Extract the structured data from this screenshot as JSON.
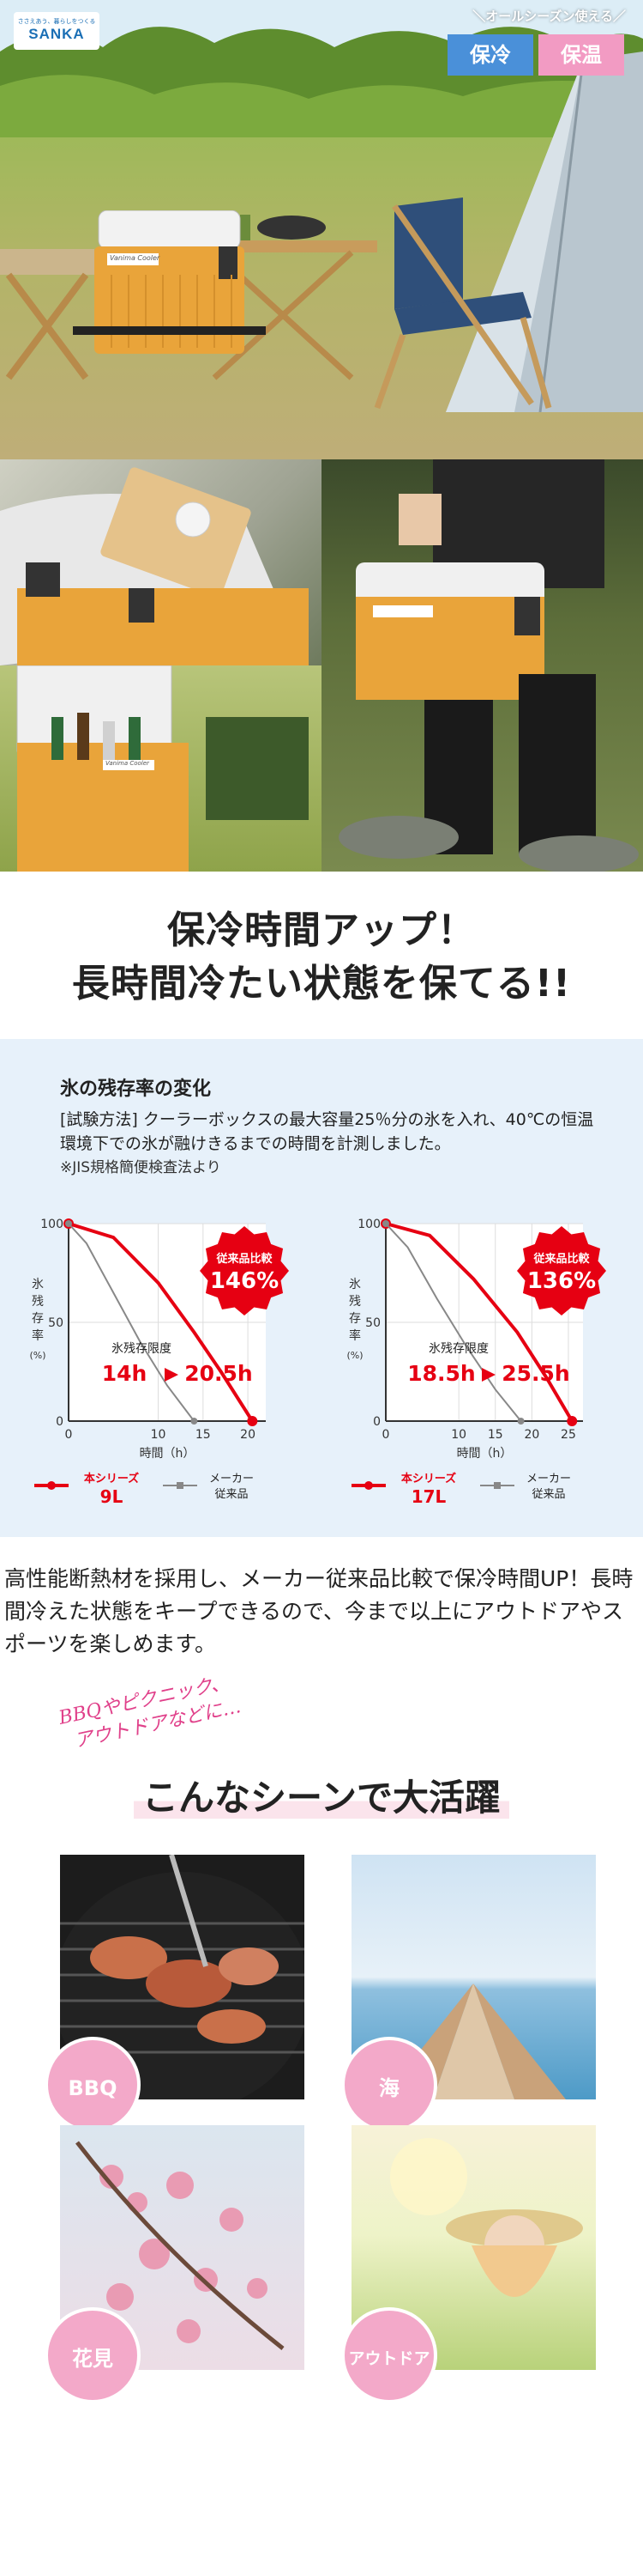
{
  "brand": {
    "logo_text": "SANKA",
    "tagline": "ささえあう、暮らしをつくる"
  },
  "hero": {
    "season_label": "＼オールシーズン使える／",
    "cold_label": "保冷",
    "warm_label": "保温",
    "cooler_label": "Vanima Cooler"
  },
  "photos": {
    "cooler_label": "Vanima Cooler"
  },
  "headline": {
    "line1": "保冷時間アップ！",
    "line2": "長時間冷たい状態を保てる!!"
  },
  "test": {
    "title": "氷の残存率の変化",
    "method_label": "[試験方法]",
    "description": "クーラーボックスの最大容量25％分の氷を入れ、40℃の恒温環境下での氷が融けきるまでの時間を計測しました。",
    "note": "※JIS規格簡便検査法より"
  },
  "chart_data": [
    {
      "type": "line",
      "ylabel": "氷残存率(%)",
      "xlabel": "時間（h）",
      "ylim": [
        0,
        100
      ],
      "xlim": [
        0,
        22
      ],
      "x_ticks": [
        0,
        10,
        15,
        20
      ],
      "y_ticks": [
        0,
        50,
        100
      ],
      "limit_label": "氷残存限度",
      "comparison_label": "従来品比較",
      "comparison_value": "146%",
      "result_from": "14h",
      "result_to": "20.5h",
      "series": [
        {
          "name": "本シリーズ 9L",
          "color": "#e60012",
          "x": [
            0,
            5,
            10,
            14,
            17,
            20.5
          ],
          "y": [
            100,
            93,
            70,
            45,
            25,
            0
          ]
        },
        {
          "name": "メーカー従来品",
          "color": "#888888",
          "x": [
            0,
            2,
            5,
            8,
            11,
            14
          ],
          "y": [
            100,
            90,
            65,
            40,
            18,
            0
          ]
        }
      ]
    },
    {
      "type": "line",
      "ylabel": "氷残存率(%)",
      "xlabel": "時間（h）",
      "ylim": [
        0,
        100
      ],
      "xlim": [
        0,
        27
      ],
      "x_ticks": [
        0,
        10,
        15,
        20,
        25
      ],
      "y_ticks": [
        0,
        50,
        100
      ],
      "limit_label": "氷残存限度",
      "comparison_label": "従来品比較",
      "comparison_value": "136%",
      "result_from": "18.5h",
      "result_to": "25.5h",
      "series": [
        {
          "name": "本シリーズ 17L",
          "color": "#e60012",
          "x": [
            0,
            6,
            12,
            18,
            22,
            25.5
          ],
          "y": [
            100,
            94,
            72,
            45,
            22,
            0
          ]
        },
        {
          "name": "メーカー従来品",
          "color": "#888888",
          "x": [
            0,
            3,
            7,
            11,
            15,
            18.5
          ],
          "y": [
            100,
            88,
            62,
            38,
            16,
            0
          ]
        }
      ]
    }
  ],
  "legend": [
    {
      "series_line1": "本シリーズ",
      "series_line2": "9L",
      "other_line1": "メーカー",
      "other_line2": "従来品"
    },
    {
      "series_line1": "本シリーズ",
      "series_line2": "17L",
      "other_line1": "メーカー",
      "other_line2": "従来品"
    }
  ],
  "body_text": "高性能断熱材を採用し、メーカー従来品比較で保冷時間UP！長時間冷えた状態をキープできるので、今まで以上にアウトドアやスポーツを楽しめます。",
  "scenes": {
    "handwrite_line1": "BBQやピクニック、",
    "handwrite_line2": "アウトドアなどに…",
    "title": "こんなシーンで大活躍",
    "items": [
      {
        "label": "BBQ"
      },
      {
        "label": "海"
      },
      {
        "label": "花見"
      },
      {
        "label": "アウトドア"
      }
    ]
  }
}
